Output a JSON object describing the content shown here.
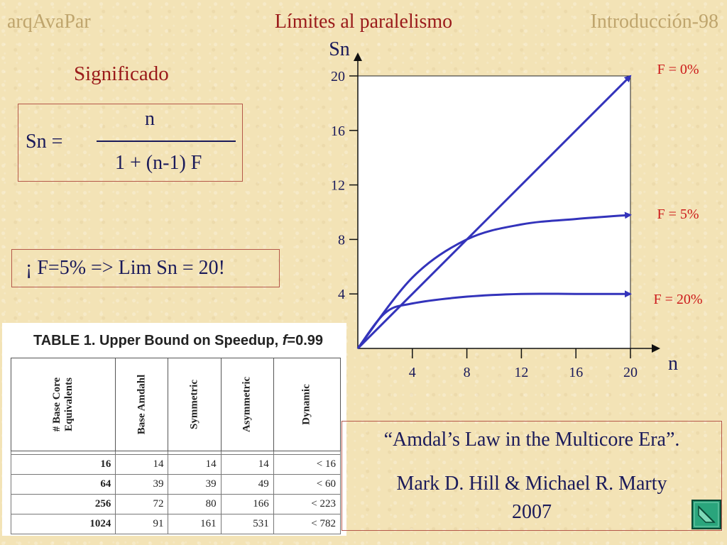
{
  "header": {
    "left": "arqAvaPar",
    "center": "Límites al paralelismo",
    "right": "Introducción-98"
  },
  "subtitle": "Significado",
  "formula": {
    "lhs": "Sn =",
    "numerator": "n",
    "denominator": "1 + (n-1) F"
  },
  "limit_text": "¡ F=5% => Lim Sn = 20!",
  "table": {
    "caption_main": "TABLE 1. Upper Bound on Speedup, ",
    "caption_var": "f",
    "caption_val": "=0.99",
    "headers": [
      "# Base Core\nEquivalents",
      "Base Amdahl",
      "Symmetric",
      "Asymmetric",
      "Dynamic"
    ],
    "rows": [
      [
        "16",
        "14",
        "14",
        "14",
        "< 16"
      ],
      [
        "64",
        "39",
        "39",
        "49",
        "< 60"
      ],
      [
        "256",
        "72",
        "80",
        "166",
        "< 223"
      ],
      [
        "1024",
        "91",
        "161",
        "531",
        "< 782"
      ]
    ]
  },
  "citation": {
    "line1": "“Amdal’s Law in the Multicore Era”.",
    "line2": "Mark D. Hill & Michael R. Marty",
    "line3": "2007"
  },
  "colors": {
    "series": "#3333bb",
    "label": "#cc1a1a"
  },
  "chart_data": {
    "type": "line",
    "xlabel": "n",
    "ylabel": "Sn",
    "xlim": [
      0,
      20
    ],
    "ylim": [
      0,
      20
    ],
    "xticks": [
      4,
      8,
      12,
      16,
      20
    ],
    "yticks": [
      4,
      8,
      12,
      16,
      20
    ],
    "series": [
      {
        "name": "F = 0%",
        "x": [
          0,
          20
        ],
        "y": [
          0,
          20
        ]
      },
      {
        "name": "F = 5%",
        "x": [
          0,
          4,
          8,
          12,
          16,
          20
        ],
        "y": [
          0,
          5.2,
          8.0,
          9.1,
          9.5,
          9.8
        ]
      },
      {
        "name": "F = 20%",
        "x": [
          0,
          2,
          4,
          8,
          12,
          16,
          20
        ],
        "y": [
          0,
          2.6,
          3.3,
          3.8,
          4.0,
          4.0,
          4.0
        ]
      }
    ]
  }
}
